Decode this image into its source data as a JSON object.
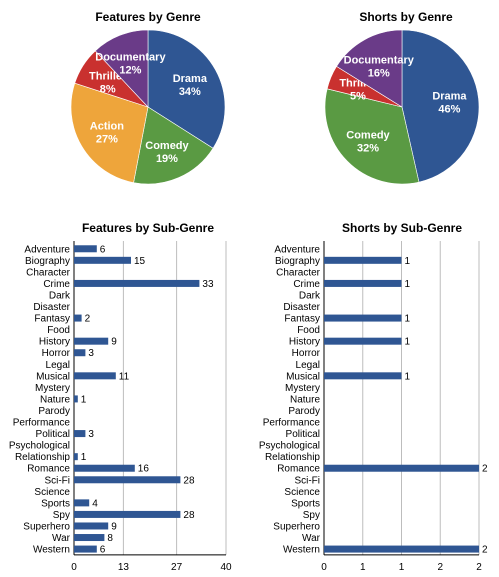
{
  "chart_data": [
    {
      "type": "pie",
      "title": "Features by Genre",
      "slices": [
        {
          "label": "Drama",
          "value": 34,
          "text": "34%",
          "color": "#2f5693"
        },
        {
          "label": "Comedy",
          "value": 19,
          "text": "19%",
          "color": "#5a9a43"
        },
        {
          "label": "Action",
          "value": 27,
          "text": "27%",
          "color": "#eea53b"
        },
        {
          "label": "Thriller",
          "value": 8,
          "text": "8%",
          "color": "#c9312f"
        },
        {
          "label": "Documentary",
          "value": 12,
          "text": "12%",
          "color": "#6a3b88"
        }
      ]
    },
    {
      "type": "pie",
      "title": "Shorts by Genre",
      "slices": [
        {
          "label": "Drama",
          "value": 46,
          "text": "46%",
          "color": "#2f5693"
        },
        {
          "label": "Comedy",
          "value": 32,
          "text": "32%",
          "color": "#5a9a43"
        },
        {
          "label": "Thriller",
          "value": 5,
          "text": "5%",
          "color": "#c9312f"
        },
        {
          "label": "Documentary",
          "value": 16,
          "text": "16%",
          "color": "#6a3b88"
        }
      ]
    },
    {
      "type": "bar",
      "orientation": "horizontal",
      "title": "Features by Sub-Genre",
      "categories": [
        "Adventure",
        "Biography",
        "Character",
        "Crime",
        "Dark",
        "Disaster",
        "Fantasy",
        "Food",
        "History",
        "Horror",
        "Legal",
        "Musical",
        "Mystery",
        "Nature",
        "Parody",
        "Performance",
        "Political",
        "Psychological",
        "Relationship",
        "Romance",
        "Sci-Fi",
        "Science",
        "Sports",
        "Spy",
        "Superhero",
        "War",
        "Western"
      ],
      "values": [
        6,
        15,
        null,
        33,
        null,
        null,
        2,
        null,
        9,
        3,
        null,
        11,
        null,
        1,
        null,
        null,
        3,
        null,
        1,
        16,
        28,
        null,
        4,
        28,
        9,
        8,
        6
      ],
      "value_labels": [
        "6",
        "15",
        "",
        "33",
        "",
        "",
        "2",
        "",
        "9",
        "3",
        "",
        "11",
        "",
        "1",
        "",
        "",
        "3",
        "",
        "1",
        "16",
        "28",
        "",
        "4",
        "28",
        "9",
        "8",
        "6"
      ],
      "xlim": [
        0,
        40
      ],
      "ticks": [
        0,
        13,
        27,
        40
      ],
      "tick_labels": [
        "0",
        "13",
        "27",
        "40"
      ],
      "bar_color": "#2f5693",
      "grid": true
    },
    {
      "type": "bar",
      "orientation": "horizontal",
      "title": "Shorts by Sub-Genre",
      "categories": [
        "Adventure",
        "Biography",
        "Character",
        "Crime",
        "Dark",
        "Disaster",
        "Fantasy",
        "Food",
        "History",
        "Horror",
        "Legal",
        "Musical",
        "Mystery",
        "Nature",
        "Parody",
        "Performance",
        "Political",
        "Psychological",
        "Relationship",
        "Romance",
        "Sci-Fi",
        "Science",
        "Sports",
        "Spy",
        "Superhero",
        "War",
        "Western"
      ],
      "values": [
        null,
        1,
        null,
        1,
        null,
        null,
        1,
        null,
        1,
        null,
        null,
        1,
        null,
        null,
        null,
        null,
        null,
        null,
        null,
        2,
        null,
        null,
        null,
        null,
        null,
        null,
        2
      ],
      "value_labels": [
        "",
        "1",
        "",
        "1",
        "",
        "",
        "1",
        "",
        "1",
        "",
        "",
        "1",
        "",
        "",
        "",
        "",
        "",
        "",
        "",
        "2",
        "",
        "",
        "",
        "",
        "",
        "",
        "2"
      ],
      "xlim": [
        0,
        2
      ],
      "ticks": [
        0,
        0.5,
        1,
        1.5,
        2
      ],
      "tick_labels": [
        "0",
        "1",
        "1",
        "2",
        "2"
      ],
      "bar_color": "#2f5693",
      "grid": true
    }
  ]
}
